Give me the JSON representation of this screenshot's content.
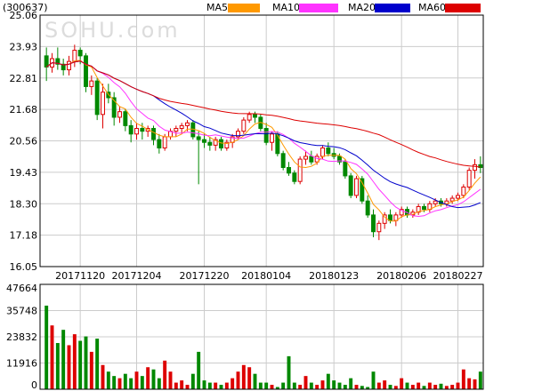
{
  "chart_data": {
    "type": "candlestick",
    "code": "(300637)",
    "watermark": "SOHU.com",
    "legend": [
      {
        "name": "MA5",
        "color": "#ff9900"
      },
      {
        "name": "MA10",
        "color": "#ff33ff"
      },
      {
        "name": "MA20",
        "color": "#0000cc"
      },
      {
        "name": "MA60",
        "color": "#dd0000"
      }
    ],
    "colors": {
      "up": "#dd0000",
      "down": "#008800",
      "grid": "#cccccc",
      "border": "#000000"
    },
    "price_axis": {
      "ticks": [
        "25.06",
        "23.93",
        "22.81",
        "21.68",
        "20.56",
        "19.43",
        "18.30",
        "17.18",
        "16.05"
      ],
      "min": 16.05,
      "max": 25.06
    },
    "volume_axis": {
      "ticks": [
        "47664",
        "35748",
        "23832",
        "11916",
        "0"
      ],
      "min": 0,
      "max": 47664
    },
    "date_labels": [
      {
        "label": "20171120",
        "index": 6
      },
      {
        "label": "20171204",
        "index": 16
      },
      {
        "label": "20171220",
        "index": 28
      },
      {
        "label": "20180104",
        "index": 39
      },
      {
        "label": "20180123",
        "index": 51
      },
      {
        "label": "20180206",
        "index": 63
      },
      {
        "label": "20180227",
        "index": 73
      }
    ],
    "candles": [
      [
        23.6,
        23.9,
        22.7,
        23.2
      ],
      [
        23.2,
        23.7,
        23.0,
        23.5
      ],
      [
        23.5,
        23.9,
        23.1,
        23.3
      ],
      [
        23.3,
        23.5,
        22.9,
        23.1
      ],
      [
        23.1,
        23.6,
        22.9,
        23.4
      ],
      [
        23.4,
        24.0,
        23.2,
        23.8
      ],
      [
        23.8,
        23.9,
        23.3,
        23.6
      ],
      [
        23.6,
        23.7,
        22.3,
        22.5
      ],
      [
        22.5,
        22.9,
        22.2,
        22.7
      ],
      [
        22.7,
        22.8,
        21.3,
        21.5
      ],
      [
        21.5,
        22.6,
        21.0,
        22.3
      ],
      [
        22.3,
        22.6,
        21.9,
        22.1
      ],
      [
        22.1,
        22.3,
        21.1,
        21.4
      ],
      [
        21.4,
        21.8,
        21.2,
        21.6
      ],
      [
        21.6,
        21.7,
        20.9,
        21.1
      ],
      [
        21.1,
        21.3,
        20.5,
        20.8
      ],
      [
        20.8,
        21.2,
        20.6,
        21.0
      ],
      [
        21.0,
        21.2,
        20.6,
        20.9
      ],
      [
        20.9,
        21.1,
        20.7,
        21.0
      ],
      [
        21.0,
        21.1,
        20.4,
        20.6
      ],
      [
        20.6,
        20.8,
        20.1,
        20.3
      ],
      [
        20.3,
        20.8,
        20.2,
        20.7
      ],
      [
        20.7,
        21.0,
        20.6,
        20.9
      ],
      [
        20.9,
        21.1,
        20.7,
        21.0
      ],
      [
        21.0,
        21.2,
        20.8,
        21.1
      ],
      [
        21.1,
        21.3,
        20.9,
        21.2
      ],
      [
        21.2,
        21.3,
        20.6,
        20.7
      ],
      [
        20.7,
        20.9,
        19.0,
        20.6
      ],
      [
        20.6,
        20.8,
        20.3,
        20.5
      ],
      [
        20.5,
        20.7,
        20.2,
        20.4
      ],
      [
        20.4,
        20.7,
        20.2,
        20.6
      ],
      [
        20.6,
        20.7,
        20.2,
        20.3
      ],
      [
        20.3,
        20.6,
        20.2,
        20.5
      ],
      [
        20.5,
        20.8,
        20.3,
        20.7
      ],
      [
        20.7,
        21.0,
        20.6,
        20.9
      ],
      [
        20.9,
        21.4,
        20.8,
        21.3
      ],
      [
        21.3,
        21.6,
        21.2,
        21.5
      ],
      [
        21.5,
        21.6,
        21.2,
        21.4
      ],
      [
        21.4,
        21.5,
        20.9,
        21.0
      ],
      [
        21.0,
        21.2,
        20.4,
        20.5
      ],
      [
        20.5,
        20.9,
        20.2,
        20.8
      ],
      [
        20.8,
        20.9,
        20.0,
        20.1
      ],
      [
        20.1,
        20.2,
        19.5,
        19.6
      ],
      [
        19.6,
        19.8,
        19.3,
        19.4
      ],
      [
        19.4,
        19.5,
        19.0,
        19.1
      ],
      [
        19.1,
        20.0,
        19.0,
        19.9
      ],
      [
        19.9,
        20.2,
        19.7,
        20.0
      ],
      [
        20.0,
        20.2,
        19.7,
        19.8
      ],
      [
        19.8,
        20.1,
        19.7,
        20.0
      ],
      [
        20.0,
        20.4,
        19.9,
        20.3
      ],
      [
        20.3,
        20.5,
        20.0,
        20.1
      ],
      [
        20.1,
        20.3,
        19.9,
        20.0
      ],
      [
        20.0,
        20.1,
        19.7,
        19.8
      ],
      [
        19.8,
        19.9,
        19.2,
        19.3
      ],
      [
        19.3,
        19.4,
        18.5,
        18.6
      ],
      [
        18.6,
        19.3,
        18.5,
        19.2
      ],
      [
        19.2,
        19.3,
        18.3,
        18.4
      ],
      [
        18.4,
        18.6,
        17.8,
        17.9
      ],
      [
        17.9,
        18.1,
        17.1,
        17.3
      ],
      [
        17.3,
        17.7,
        17.0,
        17.6
      ],
      [
        17.6,
        18.0,
        17.4,
        17.9
      ],
      [
        17.9,
        18.1,
        17.6,
        17.7
      ],
      [
        17.7,
        18.0,
        17.5,
        17.9
      ],
      [
        17.9,
        18.2,
        17.8,
        18.1
      ],
      [
        18.1,
        18.2,
        17.8,
        17.9
      ],
      [
        17.9,
        18.1,
        17.8,
        18.0
      ],
      [
        18.0,
        18.3,
        17.9,
        18.2
      ],
      [
        18.2,
        18.3,
        18.0,
        18.1
      ],
      [
        18.1,
        18.4,
        18.0,
        18.3
      ],
      [
        18.3,
        18.5,
        18.2,
        18.4
      ],
      [
        18.4,
        18.5,
        18.2,
        18.3
      ],
      [
        18.3,
        18.5,
        18.2,
        18.4
      ],
      [
        18.4,
        18.6,
        18.3,
        18.5
      ],
      [
        18.5,
        18.7,
        18.4,
        18.6
      ],
      [
        18.6,
        19.0,
        18.5,
        18.9
      ],
      [
        18.9,
        19.6,
        18.8,
        19.5
      ],
      [
        19.5,
        19.9,
        19.2,
        19.7
      ],
      [
        19.7,
        20.0,
        19.4,
        19.6
      ]
    ],
    "volumes": [
      38000,
      29000,
      21000,
      27000,
      20000,
      25000,
      22000,
      24000,
      17000,
      23000,
      11000,
      8000,
      6000,
      5000,
      7000,
      5000,
      8000,
      6000,
      10000,
      9000,
      5000,
      13000,
      8000,
      3000,
      4000,
      2000,
      7000,
      17000,
      4000,
      3000,
      3000,
      2000,
      3000,
      5000,
      8000,
      11000,
      10000,
      7000,
      3000,
      3000,
      2000,
      1000,
      3000,
      15000,
      3000,
      2000,
      6000,
      3000,
      2000,
      4000,
      7000,
      4000,
      3000,
      2000,
      5000,
      2000,
      1500,
      1000,
      8000,
      3000,
      4000,
      2000,
      1500,
      5000,
      3000,
      2000,
      3000,
      1500,
      3000,
      2000,
      2500,
      1500,
      2000,
      3000,
      9000,
      5000,
      4500,
      8000
    ]
  }
}
